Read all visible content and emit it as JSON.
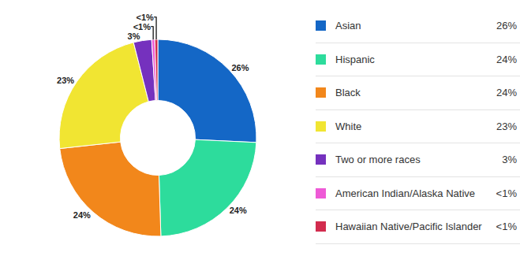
{
  "chart_data": {
    "type": "pie",
    "categories": [
      "Asian",
      "Hispanic",
      "Black",
      "White",
      "Two or more races",
      "American Indian/Alaska Native",
      "Hawaiian Native/Pacific Islander"
    ],
    "values": [
      26,
      24,
      24,
      23,
      3,
      0.5,
      0.5
    ],
    "value_labels": [
      "26%",
      "24%",
      "24%",
      "23%",
      "3%",
      "<1%",
      "<1%"
    ],
    "colors": [
      "#1467c6",
      "#2ddc9c",
      "#f2871b",
      "#f1e532",
      "#7531be",
      "#ee5ad6",
      "#d22c4e"
    ],
    "data_labels": true,
    "legend": "right"
  }
}
